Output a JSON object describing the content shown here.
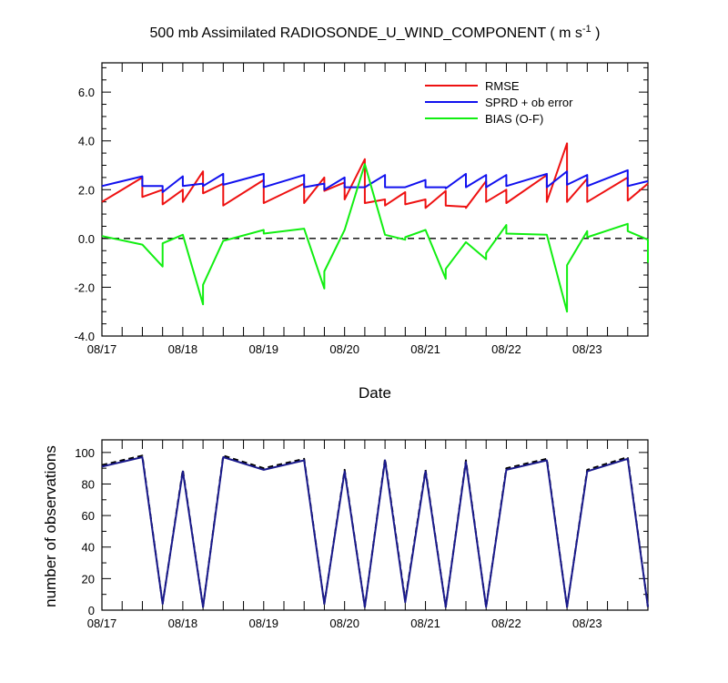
{
  "chart_data": [
    {
      "type": "line",
      "title_prefix": "500 mb Assimilated RADIOSONDE_U_WIND_COMPONENT ( m s",
      "title_superscript": "-1",
      "title_suffix": " )",
      "xlabel": "Date",
      "ylabel": "",
      "ylim": [
        -4.0,
        7.2
      ],
      "xlim": [
        0,
        6.75
      ],
      "yticks": [
        -4.0,
        -2.0,
        0.0,
        2.0,
        4.0,
        6.0
      ],
      "ytick_labels": [
        "-4.0",
        "-2.0",
        "0.0",
        "2.0",
        "4.0",
        "6.0"
      ],
      "xticks": [
        0,
        1,
        2,
        3,
        4,
        5,
        6
      ],
      "xtick_labels": [
        "08/17",
        "08/18",
        "08/19",
        "08/20",
        "08/21",
        "08/22",
        "08/23"
      ],
      "zero_line": {
        "value": 0.0,
        "style": "dashed",
        "color": "#000000"
      },
      "legend_position": "top-right",
      "series": [
        {
          "name": "RMSE",
          "color": "#ee1111",
          "x": [
            0,
            0.5,
            0.5,
            0.75,
            0.75,
            1.0,
            1.0,
            1.25,
            1.25,
            1.5,
            1.5,
            2.0,
            2.0,
            2.5,
            2.5,
            2.75,
            2.75,
            3.0,
            3.0,
            3.25,
            3.25,
            3.5,
            3.5,
            3.75,
            3.75,
            4.0,
            4.0,
            4.25,
            4.25,
            4.5,
            4.5,
            4.75,
            4.75,
            5.0,
            5.0,
            5.5,
            5.5,
            5.75,
            5.75,
            6.0,
            6.0,
            6.5,
            6.5,
            6.75
          ],
          "y": [
            1.5,
            2.5,
            1.7,
            2.0,
            1.4,
            2.0,
            1.5,
            2.75,
            1.85,
            2.25,
            1.35,
            2.4,
            1.45,
            2.25,
            1.45,
            2.5,
            1.95,
            2.3,
            1.6,
            3.25,
            1.45,
            1.6,
            1.35,
            1.9,
            1.4,
            1.6,
            1.25,
            1.95,
            1.35,
            1.3,
            1.25,
            2.35,
            1.5,
            2.0,
            1.45,
            2.6,
            1.5,
            3.9,
            1.5,
            2.45,
            1.5,
            2.5,
            1.55,
            2.25
          ]
        },
        {
          "name": "SPRD + ob error",
          "color": "#1111ee",
          "x": [
            0,
            0.5,
            0.5,
            0.75,
            0.75,
            1.0,
            1.0,
            1.25,
            1.25,
            1.5,
            1.5,
            2.0,
            2.0,
            2.5,
            2.5,
            2.75,
            2.75,
            3.0,
            3.0,
            3.25,
            3.25,
            3.5,
            3.5,
            3.75,
            3.75,
            4.0,
            4.0,
            4.25,
            4.25,
            4.5,
            4.5,
            4.75,
            4.75,
            5.0,
            5.0,
            5.5,
            5.5,
            5.75,
            5.75,
            6.0,
            6.0,
            6.5,
            6.5,
            6.75
          ],
          "y": [
            2.15,
            2.55,
            2.15,
            2.15,
            1.9,
            2.55,
            2.15,
            2.25,
            2.15,
            2.65,
            2.2,
            2.65,
            2.1,
            2.6,
            2.1,
            2.25,
            2.0,
            2.5,
            2.1,
            2.1,
            2.1,
            2.6,
            2.1,
            2.1,
            2.1,
            2.4,
            2.1,
            2.1,
            2.05,
            2.65,
            2.1,
            2.6,
            2.1,
            2.6,
            2.15,
            2.65,
            2.1,
            2.75,
            2.2,
            2.6,
            2.15,
            2.8,
            2.15,
            2.35
          ]
        },
        {
          "name": "BIAS (O-F)",
          "color": "#11ee11",
          "x": [
            0,
            0.5,
            0.75,
            0.75,
            1.0,
            1.25,
            1.25,
            1.5,
            2.0,
            2.0,
            2.5,
            2.75,
            2.75,
            3.0,
            3.25,
            3.5,
            3.75,
            3.75,
            4.0,
            4.25,
            4.25,
            4.5,
            4.75,
            4.75,
            5.0,
            5.0,
            5.5,
            5.75,
            5.75,
            6.0,
            6.0,
            6.5,
            6.5,
            6.75,
            6.75
          ],
          "y": [
            0.1,
            -0.25,
            -1.15,
            -0.2,
            0.15,
            -2.7,
            -1.9,
            -0.1,
            0.35,
            0.2,
            0.4,
            -2.05,
            -1.35,
            0.35,
            3.05,
            0.15,
            -0.05,
            0.05,
            0.35,
            -1.65,
            -1.25,
            -0.15,
            -0.85,
            -0.6,
            0.55,
            0.2,
            0.15,
            -3.0,
            -1.1,
            0.3,
            0.05,
            0.6,
            0.3,
            -0.05,
            -1.0
          ]
        }
      ]
    },
    {
      "type": "line",
      "title": "",
      "xlabel": "",
      "ylabel": "number of observations",
      "ylim": [
        0,
        108
      ],
      "xlim": [
        0,
        6.75
      ],
      "yticks": [
        0,
        20,
        40,
        60,
        80,
        100
      ],
      "ytick_labels": [
        "0",
        "20",
        "40",
        "60",
        "80",
        "100"
      ],
      "xticks": [
        0,
        1,
        2,
        3,
        4,
        5,
        6
      ],
      "xtick_labels": [
        "08/17",
        "08/18",
        "08/19",
        "08/20",
        "08/21",
        "08/22",
        "08/23"
      ],
      "series": [
        {
          "line_style": "dashed",
          "color": "#000000",
          "x": [
            0,
            0.5,
            0.75,
            1.0,
            1.25,
            1.5,
            2.0,
            2.5,
            2.75,
            3.0,
            3.25,
            3.5,
            3.75,
            4.0,
            4.25,
            4.5,
            4.75,
            5.0,
            5.5,
            5.75,
            6.0,
            6.5,
            6.75
          ],
          "y": [
            92,
            98,
            4,
            89,
            2,
            98,
            90,
            96,
            4,
            89,
            2,
            96,
            6,
            89,
            2,
            95,
            2,
            90,
            96,
            2,
            89,
            97,
            2
          ]
        },
        {
          "line_style": "solid",
          "color": "#1a1a8c",
          "x": [
            0,
            0.5,
            0.75,
            1.0,
            1.25,
            1.5,
            2.0,
            2.5,
            2.75,
            3.0,
            3.25,
            3.5,
            3.75,
            4.0,
            4.25,
            4.5,
            4.75,
            5.0,
            5.5,
            5.75,
            6.0,
            6.5,
            6.75
          ],
          "y": [
            91,
            97,
            4,
            88,
            2,
            97,
            89,
            95,
            4,
            88,
            2,
            95,
            5,
            88,
            2,
            94,
            2,
            89,
            95,
            2,
            88,
            96,
            2
          ]
        }
      ]
    }
  ]
}
